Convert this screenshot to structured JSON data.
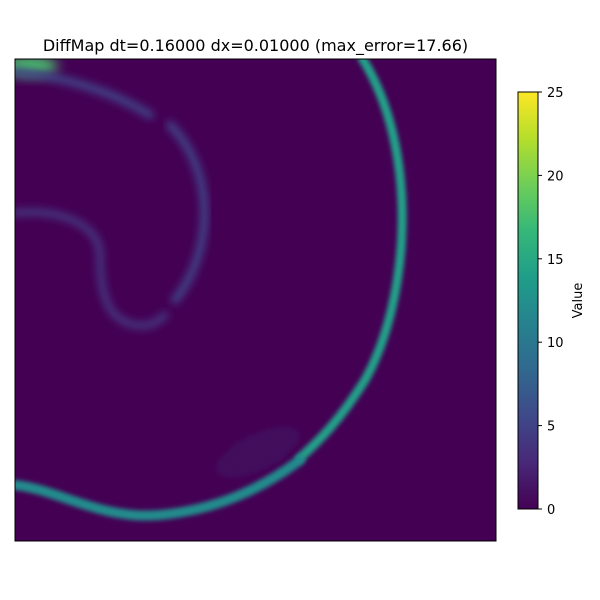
{
  "chart_data": {
    "type": "heatmap",
    "title": "DiffMap dt=0.16000 dx=0.01000 (max_error=17.66)",
    "xlabel": "",
    "ylabel": "",
    "axis_ticks_visible": false,
    "grid": false,
    "colormap": "viridis",
    "colorbar": {
      "label": "Value",
      "range": [
        0,
        25
      ],
      "ticks": [
        0,
        5,
        10,
        15,
        20,
        25
      ],
      "tick_labels": [
        "0",
        "5",
        "10",
        "15",
        "20",
        "25"
      ]
    },
    "max_error": 17.66,
    "description_of_field": "Mostly near-zero values with thin curved ridges of elevated error",
    "ridges": [
      {
        "name": "right-arc",
        "peak_value": 14
      },
      {
        "name": "bottom-arc",
        "peak_value": 12
      },
      {
        "name": "top-left-corner",
        "peak_value": 17.66
      },
      {
        "name": "top-left-arc",
        "peak_value": 5
      },
      {
        "name": "inner-arc",
        "peak_value": 5
      },
      {
        "name": "left-loop",
        "peak_value": 4
      }
    ],
    "colors": {
      "background": "#440154",
      "viridis_stops": [
        "#440154",
        "#482878",
        "#3e4989",
        "#31688e",
        "#26828e",
        "#1f9e89",
        "#35b779",
        "#6ece58",
        "#b5de2b",
        "#fde725"
      ]
    }
  }
}
